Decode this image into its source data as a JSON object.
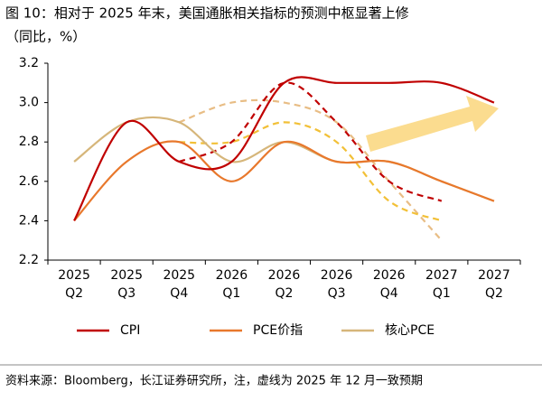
{
  "chart_data": {
    "type": "line",
    "title": [
      "图 10：相对于 2025 年末，美国通胀相关指标的预测中枢显著上修",
      "（同比，%）"
    ],
    "source": "资料来源：Bloomberg，长江证券研究所，注，虚线为 2025 年 12 月一致预期",
    "categories": [
      [
        "2025",
        "Q2"
      ],
      [
        "2025",
        "Q3"
      ],
      [
        "2025",
        "Q4"
      ],
      [
        "2026",
        "Q1"
      ],
      [
        "2026",
        "Q2"
      ],
      [
        "2026",
        "Q3"
      ],
      [
        "2026",
        "Q4"
      ],
      [
        "2027",
        "Q1"
      ],
      [
        "2027",
        "Q2"
      ]
    ],
    "ylim": [
      2.2,
      3.2
    ],
    "yticks": [
      2.2,
      2.4,
      2.6,
      2.8,
      {
        "value": 3,
        "label": "3.0"
      },
      3.2
    ],
    "series": [
      {
        "name": "CPI",
        "color": "#c00000",
        "values": [
          2.4,
          2.9,
          2.7,
          2.7,
          3.1,
          3.1,
          3.1,
          3.1,
          3.0
        ],
        "forecast": [
          null,
          null,
          2.7,
          2.8,
          3.1,
          2.9,
          2.6,
          2.5,
          null
        ],
        "forecast_color": "#c00000"
      },
      {
        "name": "PCE价指",
        "color": "#e8782c",
        "values": [
          2.4,
          2.7,
          2.8,
          2.6,
          2.8,
          2.7,
          2.7,
          2.6,
          2.5
        ],
        "forecast": [
          null,
          null,
          2.8,
          2.8,
          2.9,
          2.8,
          2.5,
          2.4,
          null
        ],
        "forecast_color": "#f2c037"
      },
      {
        "name": "核心PCE",
        "color": "#d6b67a",
        "values": [
          2.7,
          2.9,
          2.9,
          2.7,
          2.8,
          2.7,
          2.7,
          2.6,
          2.5
        ],
        "forecast": [
          null,
          null,
          2.9,
          3.0,
          3.0,
          2.9,
          2.6,
          2.3,
          null
        ],
        "forecast_color": "#e8bd85"
      }
    ]
  }
}
